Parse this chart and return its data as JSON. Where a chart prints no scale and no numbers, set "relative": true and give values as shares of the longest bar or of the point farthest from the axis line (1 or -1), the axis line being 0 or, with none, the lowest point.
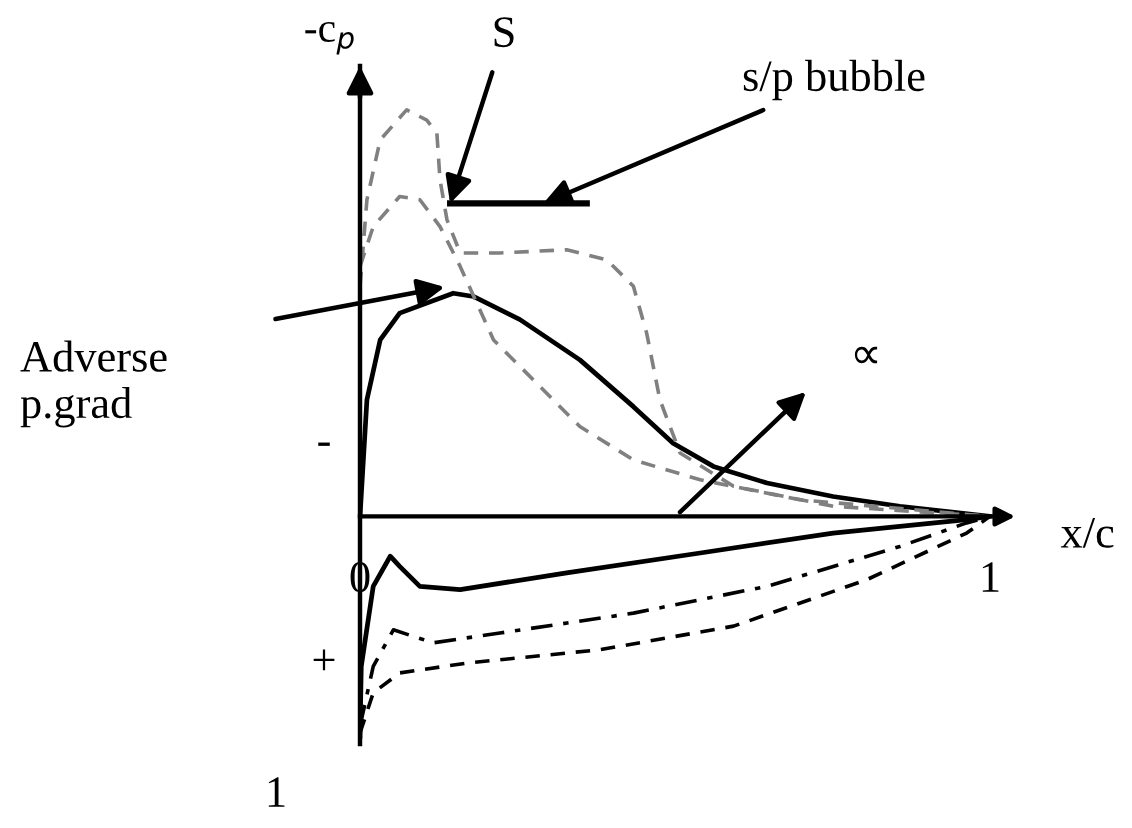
{
  "chart_data": {
    "type": "line",
    "relative": true,
    "xlabel": "x/c",
    "ylabel": "-c$_{p}$",
    "xlim": [
      0,
      1
    ],
    "xticks": [
      0,
      1
    ],
    "series": [
      {
        "color": "#000000",
        "line_style": "solid",
        "x": [
          0,
          0.011,
          0.032,
          0.063,
          0.148,
          0.18,
          0.254,
          0.349,
          0.434,
          0.497,
          0.561,
          0.646,
          0.751,
          0.857,
          1
        ],
        "values": [
          0,
          0.287,
          0.434,
          0.5,
          0.549,
          0.541,
          0.484,
          0.385,
          0.27,
          0.18,
          0.123,
          0.082,
          0.049,
          0.025,
          0
        ]
      },
      {
        "color": "#808080",
        "line_style": "dashed",
        "x": [
          0,
          0.011,
          0.032,
          0.074,
          0.106,
          0.122,
          0.127,
          0.138,
          0.159,
          0.222,
          0.328,
          0.392,
          0.434,
          0.455,
          0.476,
          0.508,
          0.593,
          0.751,
          1
        ],
        "values": [
          0.566,
          0.779,
          0.926,
          1.0,
          0.975,
          0.943,
          0.828,
          0.73,
          0.648,
          0.648,
          0.656,
          0.631,
          0.566,
          0.451,
          0.287,
          0.156,
          0.074,
          0.025,
          0
        ]
      },
      {
        "color": "#808080",
        "line_style": "dashed",
        "x": [
          0,
          0.021,
          0.063,
          0.095,
          0.127,
          0.159,
          0.212,
          0.275,
          0.349,
          0.434,
          0.54,
          0.698,
          1
        ],
        "values": [
          0.615,
          0.713,
          0.787,
          0.779,
          0.713,
          0.615,
          0.434,
          0.336,
          0.221,
          0.139,
          0.09,
          0.041,
          0
        ]
      },
      {
        "color": "#000000",
        "line_style": "solid",
        "x": [
          0,
          0.002,
          0.021,
          0.048,
          0.063,
          0.095,
          0.159,
          0.328,
          0.54,
          0.751,
          0.963,
          1
        ],
        "values": [
          -0.541,
          -0.369,
          -0.172,
          -0.098,
          -0.123,
          -0.172,
          -0.18,
          -0.139,
          -0.09,
          -0.041,
          -0.008,
          0
        ]
      },
      {
        "color": "#000000",
        "line_style": "dashdot",
        "x": [
          0,
          0.021,
          0.053,
          0.116,
          0.222,
          0.434,
          0.646,
          0.857,
          0.963,
          1
        ],
        "values": [
          -0.516,
          -0.369,
          -0.279,
          -0.311,
          -0.287,
          -0.238,
          -0.172,
          -0.074,
          -0.016,
          0
        ]
      },
      {
        "color": "#000000",
        "line_style": "dashed",
        "x": [
          0,
          0.021,
          0.063,
          0.169,
          0.381,
          0.593,
          0.804,
          0.963,
          1
        ],
        "values": [
          -0.533,
          -0.434,
          -0.385,
          -0.361,
          -0.328,
          -0.27,
          -0.156,
          -0.041,
          0
        ]
      },
      {
        "color": "#000000",
        "line_style": "solid",
        "x": [
          0.143,
          0.36
        ],
        "values": [
          0.77,
          0.77
        ]
      }
    ],
    "annotations": [
      {
        "text": "S",
        "x": 0.143,
        "y": 0.77
      },
      {
        "text": "s/p bubble",
        "x": 0.291,
        "y": 0.77
      },
      "Adverse\np.grad",
      "∝",
      "-",
      "+",
      "1"
    ]
  }
}
